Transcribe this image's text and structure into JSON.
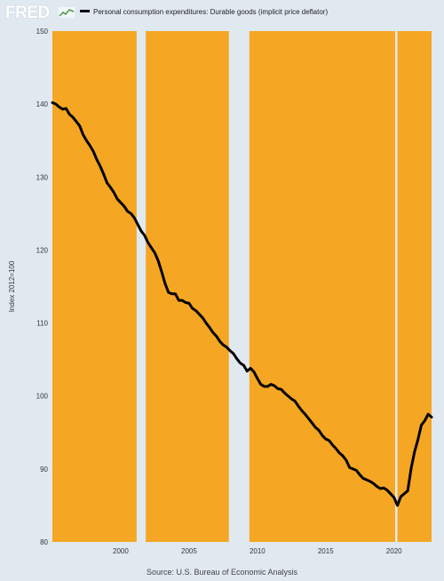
{
  "brand": {
    "logo_text": "FRED",
    "logo_icon": "fred-trend-icon"
  },
  "colors": {
    "background": "#e1e9f0",
    "plot_fill": "#f5a623",
    "line": "#000000",
    "recession": "#e1e9f0"
  },
  "chart_data": {
    "type": "line",
    "legend_position": "top-left",
    "grid": false,
    "series": [
      {
        "name": "Personal consumption expenditures: Durable goods (implicit price deflator)",
        "points": [
          [
            "1995-01-01",
            140.2
          ],
          [
            "1995-04-01",
            140.0
          ],
          [
            "1995-07-01",
            139.6
          ],
          [
            "1995-10-01",
            139.3
          ],
          [
            "1996-01-01",
            139.4
          ],
          [
            "1996-04-01",
            138.6
          ],
          [
            "1996-07-01",
            138.2
          ],
          [
            "1996-10-01",
            137.6
          ],
          [
            "1997-01-01",
            137.0
          ],
          [
            "1997-04-01",
            135.8
          ],
          [
            "1997-07-01",
            135.0
          ],
          [
            "1997-10-01",
            134.3
          ],
          [
            "1998-01-01",
            133.5
          ],
          [
            "1998-04-01",
            132.4
          ],
          [
            "1998-07-01",
            131.5
          ],
          [
            "1998-10-01",
            130.4
          ],
          [
            "1999-01-01",
            129.2
          ],
          [
            "1999-04-01",
            128.6
          ],
          [
            "1999-07-01",
            127.9
          ],
          [
            "1999-10-01",
            127.0
          ],
          [
            "2000-01-01",
            126.5
          ],
          [
            "2000-04-01",
            126.0
          ],
          [
            "2000-07-01",
            125.3
          ],
          [
            "2000-10-01",
            125.0
          ],
          [
            "2001-01-01",
            124.4
          ],
          [
            "2001-04-01",
            123.5
          ],
          [
            "2001-07-01",
            122.6
          ],
          [
            "2001-10-01",
            122.0
          ],
          [
            "2002-01-01",
            121.0
          ],
          [
            "2002-04-01",
            120.3
          ],
          [
            "2002-07-01",
            119.6
          ],
          [
            "2002-10-01",
            118.5
          ],
          [
            "2003-01-01",
            117.0
          ],
          [
            "2003-04-01",
            115.4
          ],
          [
            "2003-07-01",
            114.2
          ],
          [
            "2003-10-01",
            114.0
          ],
          [
            "2004-01-01",
            114.0
          ],
          [
            "2004-04-01",
            113.1
          ],
          [
            "2004-07-01",
            113.1
          ],
          [
            "2004-10-01",
            112.8
          ],
          [
            "2005-01-01",
            112.7
          ],
          [
            "2005-04-01",
            112.0
          ],
          [
            "2005-07-01",
            111.7
          ],
          [
            "2005-10-01",
            111.2
          ],
          [
            "2006-01-01",
            110.7
          ],
          [
            "2006-04-01",
            110.0
          ],
          [
            "2006-07-01",
            109.4
          ],
          [
            "2006-10-01",
            108.7
          ],
          [
            "2007-01-01",
            108.2
          ],
          [
            "2007-04-01",
            107.5
          ],
          [
            "2007-07-01",
            107.0
          ],
          [
            "2007-10-01",
            106.7
          ],
          [
            "2008-01-01",
            106.2
          ],
          [
            "2008-04-01",
            105.8
          ],
          [
            "2008-07-01",
            105.1
          ],
          [
            "2008-10-01",
            104.5
          ],
          [
            "2009-01-01",
            104.2
          ],
          [
            "2009-04-01",
            103.4
          ],
          [
            "2009-07-01",
            103.8
          ],
          [
            "2009-10-01",
            103.3
          ],
          [
            "2010-01-01",
            102.4
          ],
          [
            "2010-04-01",
            101.6
          ],
          [
            "2010-07-01",
            101.3
          ],
          [
            "2010-10-01",
            101.3
          ],
          [
            "2011-01-01",
            101.6
          ],
          [
            "2011-04-01",
            101.4
          ],
          [
            "2011-07-01",
            101.0
          ],
          [
            "2011-10-01",
            100.9
          ],
          [
            "2012-01-01",
            100.4
          ],
          [
            "2012-04-01",
            100.0
          ],
          [
            "2012-07-01",
            99.6
          ],
          [
            "2012-10-01",
            99.3
          ],
          [
            "2013-01-01",
            98.6
          ],
          [
            "2013-04-01",
            98.0
          ],
          [
            "2013-07-01",
            97.5
          ],
          [
            "2013-10-01",
            96.9
          ],
          [
            "2014-01-01",
            96.3
          ],
          [
            "2014-04-01",
            95.7
          ],
          [
            "2014-07-01",
            95.3
          ],
          [
            "2014-10-01",
            94.6
          ],
          [
            "2015-01-01",
            94.1
          ],
          [
            "2015-04-01",
            93.9
          ],
          [
            "2015-07-01",
            93.3
          ],
          [
            "2015-10-01",
            92.8
          ],
          [
            "2016-01-01",
            92.2
          ],
          [
            "2016-04-01",
            91.8
          ],
          [
            "2016-07-01",
            91.2
          ],
          [
            "2016-10-01",
            90.2
          ],
          [
            "2017-01-01",
            90.0
          ],
          [
            "2017-04-01",
            89.8
          ],
          [
            "2017-07-01",
            89.2
          ],
          [
            "2017-10-01",
            88.7
          ],
          [
            "2018-01-01",
            88.5
          ],
          [
            "2018-04-01",
            88.3
          ],
          [
            "2018-07-01",
            88.0
          ],
          [
            "2018-10-01",
            87.6
          ],
          [
            "2019-01-01",
            87.3
          ],
          [
            "2019-04-01",
            87.4
          ],
          [
            "2019-07-01",
            87.1
          ],
          [
            "2019-10-01",
            86.6
          ],
          [
            "2020-01-01",
            86.1
          ],
          [
            "2020-04-01",
            85.0
          ],
          [
            "2020-07-01",
            86.2
          ],
          [
            "2020-10-01",
            86.6
          ],
          [
            "2021-01-01",
            87.0
          ],
          [
            "2021-04-01",
            90.0
          ],
          [
            "2021-07-01",
            92.3
          ],
          [
            "2021-10-01",
            94.0
          ],
          [
            "2022-01-01",
            96.0
          ],
          [
            "2022-04-01",
            96.6
          ],
          [
            "2022-07-01",
            97.5
          ],
          [
            "2022-10-01",
            97.1
          ]
        ]
      }
    ],
    "recessions": [
      [
        "2001-03-01",
        "2001-11-01"
      ],
      [
        "2007-12-01",
        "2009-06-01"
      ],
      [
        "2020-02-01",
        "2020-04-01"
      ]
    ],
    "xlim": [
      "1995-01-01",
      "2022-10-01"
    ],
    "ylim": [
      80,
      150
    ],
    "x_ticks": [
      "2000",
      "2005",
      "2010",
      "2015",
      "2020"
    ],
    "y_ticks": [
      "80",
      "90",
      "100",
      "110",
      "120",
      "130",
      "140",
      "150"
    ],
    "ylabel": "Index 2012=100",
    "source": "Source: U.S. Bureau of Economic Analysis"
  }
}
